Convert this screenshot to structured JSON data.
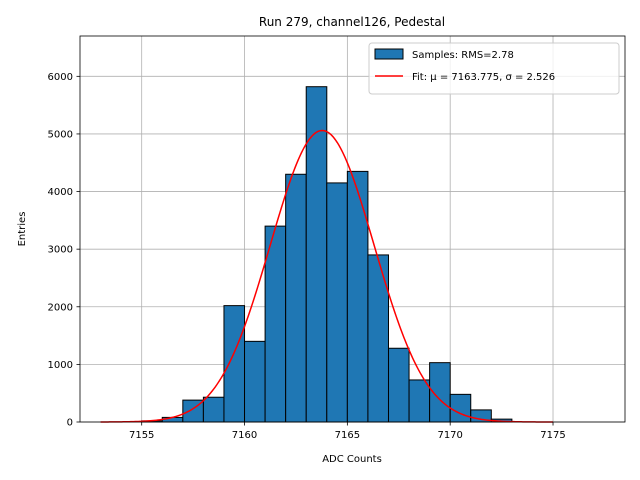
{
  "chart_data": {
    "type": "bar",
    "title": "Run 279, channel126, Pedestal",
    "xlabel": "ADC Counts",
    "ylabel": "Entries",
    "xlim": [
      7152.0,
      7178.5
    ],
    "ylim": [
      0,
      6700
    ],
    "xticks": [
      7155,
      7160,
      7165,
      7170,
      7175
    ],
    "yticks": [
      0,
      1000,
      2000,
      3000,
      4000,
      5000,
      6000
    ],
    "grid": true,
    "legend_position": "top-right",
    "bin_width": 1,
    "bins": [
      {
        "left": 7155,
        "count": 20
      },
      {
        "left": 7156,
        "count": 80
      },
      {
        "left": 7157,
        "count": 380
      },
      {
        "left": 7158,
        "count": 430
      },
      {
        "left": 7159,
        "count": 2020
      },
      {
        "left": 7160,
        "count": 1400
      },
      {
        "left": 7161,
        "count": 3400
      },
      {
        "left": 7162,
        "count": 4300
      },
      {
        "left": 7163,
        "count": 5820
      },
      {
        "left": 7164,
        "count": 4150
      },
      {
        "left": 7165,
        "count": 4350
      },
      {
        "left": 7166,
        "count": 2900
      },
      {
        "left": 7167,
        "count": 1280
      },
      {
        "left": 7168,
        "count": 730
      },
      {
        "left": 7169,
        "count": 1030
      },
      {
        "left": 7170,
        "count": 480
      },
      {
        "left": 7171,
        "count": 210
      },
      {
        "left": 7172,
        "count": 50
      }
    ],
    "series": [
      {
        "name": "Samples: RMS=2.78",
        "kind": "histogram",
        "color": "#1f77b4",
        "edge_color": "#000000"
      },
      {
        "name": "Fit: μ = 7163.775, σ = 2.526",
        "kind": "gaussian-fit",
        "color": "#ff0000",
        "mu": 7163.775,
        "sigma": 2.526,
        "amplitude": 5060,
        "x_range": [
          7153,
          7175
        ]
      }
    ]
  }
}
